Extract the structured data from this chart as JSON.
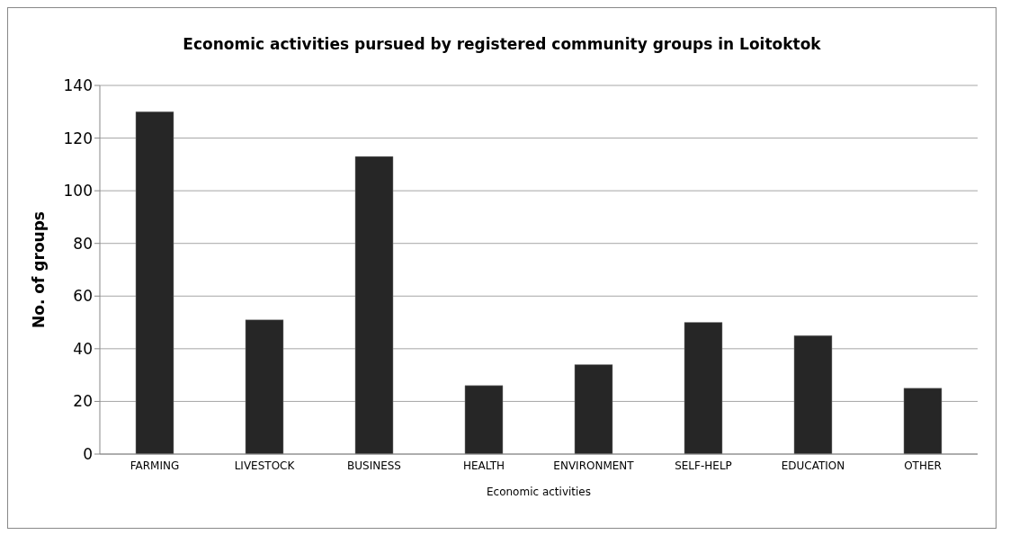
{
  "chart_data": {
    "type": "bar",
    "title": "Economic activities pursued by registered community groups in Loitoktok",
    "xlabel": "Economic activities",
    "ylabel": "No. of groups",
    "categories": [
      "FARMING",
      "LIVESTOCK",
      "BUSINESS",
      "HEALTH",
      "ENVIRONMENT",
      "SELF-HELP",
      "EDUCATION",
      "OTHER"
    ],
    "values": [
      130,
      51,
      113,
      26,
      34,
      50,
      45,
      25
    ],
    "color": "#262626",
    "ylim": [
      0,
      140
    ],
    "yticks": [
      0,
      20,
      40,
      60,
      80,
      100,
      120,
      140
    ],
    "grid": "y"
  }
}
